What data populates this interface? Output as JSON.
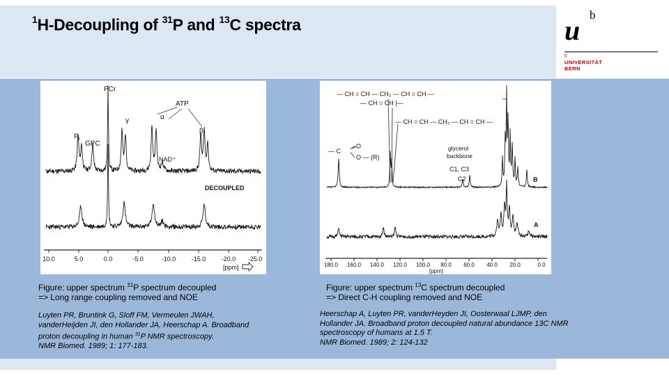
{
  "title": {
    "pre": "",
    "sup1": "1",
    "part1": "H-Decoupling of ",
    "sup2": "31",
    "part2": "P and ",
    "sup3": "13",
    "part3": "C spectra"
  },
  "logo": {
    "u": "u",
    "b": "b",
    "small_b": "b",
    "line1": "UNIVERSITÄT",
    "line2": "BERN"
  },
  "left_figure": {
    "labels": {
      "pcr": "PCr",
      "atp": "ATP",
      "gamma": "γ",
      "alpha": "α",
      "beta": "β",
      "pi": "P",
      "pi_sub": "i",
      "gpc": "GPC",
      "nad": "NAD⁺",
      "decoupled": "DECOUPLED",
      "unit": "[ppm]"
    },
    "ticks": [
      "10.0",
      "5.0",
      "0.0",
      "-5.0",
      "-10.0",
      "-15.0",
      "-20.0",
      "-25.0"
    ]
  },
  "right_figure": {
    "labels": {
      "chain1": "— CH = CH — CH₂ — CH = CH —",
      "chain2": "— CH = CH |—",
      "chain3": "— CH = CH — CH₂ — CH = CH —",
      "ester_c": "— C",
      "ester_o1": "O",
      "ester_o2": "O — (R)",
      "glycerol1": "glycerol",
      "glycerol2": "backbone",
      "c1c3": "C1, C3",
      "c2": "C2",
      "b": "B",
      "a": "A",
      "unit": "[ppm]"
    },
    "ticks": [
      "180.0",
      "160.0",
      "140.0",
      "120.0",
      "100.0",
      "80.0",
      "60.0",
      "40.0",
      "20.0",
      "0.0"
    ]
  },
  "left_caption": {
    "line1_pre": "Figure: upper spectrum ",
    "line1_sup": "31",
    "line1_post": "P spectrum decoupled",
    "line2": "=> Long range coupling removed and NOE"
  },
  "right_caption": {
    "line1_pre": "Figure: upper spectrum ",
    "line1_sup": "13",
    "line1_post": "C spectrum decoupled",
    "line2": "=> Direct C-H coupling removed and NOE"
  },
  "left_ref": {
    "line1": "Luyten PR, Bruntink G, Sloff FM, Vermeulen JWAH,",
    "line2": "vanderHeijden JI, den Hollander JA, Heerschap A. Broadband",
    "line3_pre": "proton decoupling in human ",
    "line3_sup": "31",
    "line3_post": "P NMR spectroscopy.",
    "line4": "NMR Biomed. 1989; 1: 177-183."
  },
  "right_ref": {
    "line1": "Heerschap A, Luyten PR, vanderHeyden JI, Oosterwaal LJMP, den",
    "line2": "Hollander JA. Broadband proton decoupled natural abundance 13C NMR",
    "line3": "spectroscopy of humans at 1.5 T.",
    "line4": "NMR Biomed.  1989; 2: 124-132"
  }
}
